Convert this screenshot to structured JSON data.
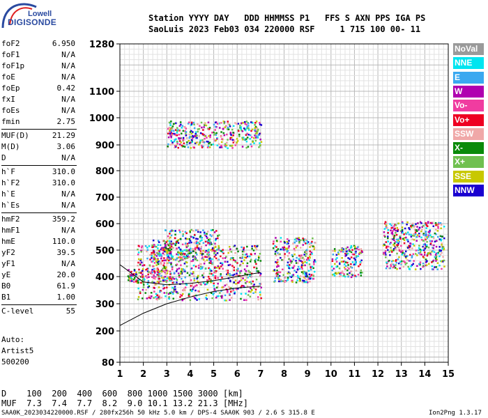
{
  "header": {
    "line1": "Station YYYY DAY   DDD HHMMSS P1   FFS S AXN PPS IGA PS",
    "line2": "SaoLuis 2023 Feb03 034 220000 RSF     1 715 100 00- 11"
  },
  "logo": {
    "top": "Lowell",
    "bottom": "DIGISONDE"
  },
  "params": [
    {
      "name": "foF2",
      "value": "6.950"
    },
    {
      "name": "foF1",
      "value": "N/A"
    },
    {
      "name": "foF1p",
      "value": "N/A"
    },
    {
      "name": "foE",
      "value": "N/A"
    },
    {
      "name": "foEp",
      "value": "0.42"
    },
    {
      "name": "fxI",
      "value": "N/A"
    },
    {
      "name": "foEs",
      "value": "N/A"
    },
    {
      "name": "fmin",
      "value": "2.75"
    },
    {
      "name": "MUF(D)",
      "value": "21.29"
    },
    {
      "name": "M(D)",
      "value": "3.06"
    },
    {
      "name": "D",
      "value": "N/A"
    },
    {
      "name": "h`F",
      "value": "310.0"
    },
    {
      "name": "h`F2",
      "value": "310.0"
    },
    {
      "name": "h`E",
      "value": "N/A"
    },
    {
      "name": "h`Es",
      "value": "N/A"
    },
    {
      "name": "hmF2",
      "value": "359.2"
    },
    {
      "name": "hmF1",
      "value": "N/A"
    },
    {
      "name": "hmE",
      "value": "110.0"
    },
    {
      "name": "yF2",
      "value": "39.5"
    },
    {
      "name": "yF1",
      "value": "N/A"
    },
    {
      "name": "yE",
      "value": "20.0"
    },
    {
      "name": "B0",
      "value": "61.9"
    },
    {
      "name": "B1",
      "value": "1.00"
    },
    {
      "name": "C-level",
      "value": "55"
    }
  ],
  "notes": [
    "Auto:",
    "Artist5",
    "500200"
  ],
  "legend": [
    {
      "label": "NoVal",
      "color": "#9a9a9a"
    },
    {
      "label": "NNE",
      "color": "#00e5f0"
    },
    {
      "label": "E",
      "color": "#3aa8f0"
    },
    {
      "label": "W",
      "color": "#b000b0"
    },
    {
      "label": "Vo-",
      "color": "#f03ca0"
    },
    {
      "label": "Vo+",
      "color": "#ee0022"
    },
    {
      "label": "SSW",
      "color": "#f0a8a8"
    },
    {
      "label": "X-",
      "color": "#0a8a0a"
    },
    {
      "label": "X+",
      "color": "#70c050"
    },
    {
      "label": "SSE",
      "color": "#c8c800"
    },
    {
      "label": "NNW",
      "color": "#1a00d0"
    }
  ],
  "muf_table": {
    "line1": "D    100  200  400  600  800 1000 1500 3000 [km]",
    "line2": "MUF  7.3  7.4  7.7  8.2  9.0 10.1 13.2 21.3 [MHz]"
  },
  "footer": {
    "left": "SAA0K_2023034220000.RSF / 280fx256h 50 kHz 5.0 km / DPS-4 SAA0K 903 / 2.6 S 315.8 E",
    "right": "Ion2Png 1.3.17"
  },
  "chart_data": {
    "type": "scatter",
    "title": "",
    "xlabel": "",
    "ylabel": "",
    "xlim": [
      1,
      15
    ],
    "ylim": [
      80,
      1280
    ],
    "x_ticks": [
      1,
      2,
      3,
      4,
      5,
      6,
      7,
      8,
      9,
      10,
      11,
      12,
      13,
      14,
      15
    ],
    "y_ticks": [
      80,
      200,
      300,
      400,
      500,
      600,
      700,
      800,
      900,
      1000,
      1100,
      1280
    ],
    "grid": true,
    "y_scale": "non-linear (ionogram virtual height)",
    "traces": [
      {
        "name": "trace-lower",
        "x": [
          1.0,
          2.0,
          3.0,
          4.0,
          5.0,
          6.0,
          6.6,
          7.0
        ],
        "y": [
          220,
          265,
          300,
          325,
          345,
          358,
          362,
          365
        ]
      },
      {
        "name": "trace-upper",
        "x": [
          1.0,
          2.0,
          3.0,
          4.0,
          5.0,
          6.0,
          6.6,
          7.0
        ],
        "y": [
          445,
          380,
          370,
          375,
          385,
          400,
          410,
          415
        ]
      }
    ],
    "echo_regions": [
      {
        "x": [
          1.3,
          2.0
        ],
        "y": [
          380,
          430
        ]
      },
      {
        "x": [
          1.7,
          7.0
        ],
        "y": [
          315,
          520
        ]
      },
      {
        "x": [
          2.9,
          5.2
        ],
        "y": [
          460,
          580
        ]
      },
      {
        "x": [
          2.3,
          3.2
        ],
        "y": [
          380,
          540
        ]
      },
      {
        "x": [
          7.5,
          9.3
        ],
        "y": [
          380,
          550
        ]
      },
      {
        "x": [
          10.0,
          11.3
        ],
        "y": [
          400,
          520
        ]
      },
      {
        "x": [
          12.2,
          14.8
        ],
        "y": [
          430,
          610
        ]
      },
      {
        "x": [
          3.0,
          7.0
        ],
        "y": [
          890,
          990
        ]
      }
    ]
  }
}
